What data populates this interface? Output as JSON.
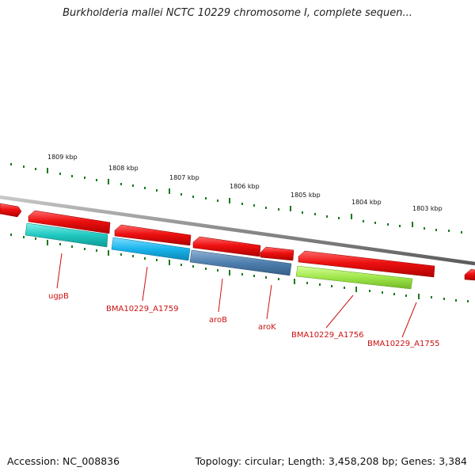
{
  "title": "Burkholderia mallei NCTC 10229 chromosome I, complete sequen...",
  "footer": {
    "accession": "Accession: NC_008836",
    "summary": "Topology: circular; Length: 3,458,208 bp; Genes: 3,384"
  },
  "ruler": {
    "labels": [
      "1809 kbp",
      "1808 kbp",
      "1807 kbp",
      "1806 kbp",
      "1805 kbp",
      "1804 kbp",
      "1803 kbp"
    ]
  },
  "genes": [
    {
      "name": "ugpB",
      "color": "#20c8c0"
    },
    {
      "name": "BMA10229_A1759",
      "color": "#19b4ec"
    },
    {
      "name": "aroB",
      "color": "#4f7fae"
    },
    {
      "name": "aroK",
      "color": "#9fe64a"
    },
    {
      "name": "BMA10229_A1756",
      "color": "#9fe64a"
    },
    {
      "name": "BMA10229_A1755",
      "color": "#9fe64a"
    }
  ],
  "colors": {
    "cds": "#ee1111",
    "backbone": "#8a8a8a",
    "tick": "#1a7a1a"
  }
}
